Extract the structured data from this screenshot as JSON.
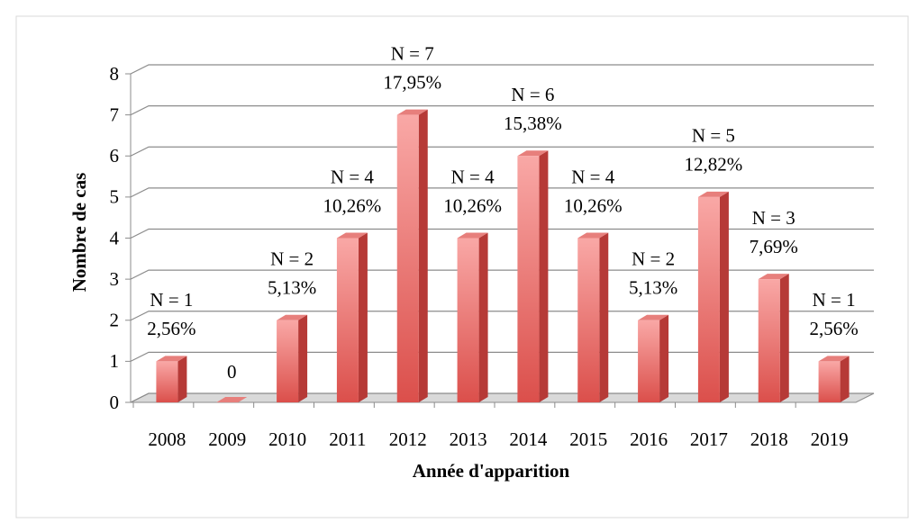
{
  "chart_data": {
    "type": "bar3d",
    "y_label": "Nombre de cas",
    "x_label": "Année d'apparition",
    "categories": [
      "2008",
      "2009",
      "2010",
      "2011",
      "2012",
      "2013",
      "2014",
      "2015",
      "2016",
      "2017",
      "2018",
      "2019"
    ],
    "values": [
      1,
      0,
      2,
      4,
      7,
      4,
      6,
      4,
      2,
      5,
      3,
      1
    ],
    "value_labels": [
      "N = 1",
      "0",
      "N = 2",
      "N = 4",
      "N = 7",
      "N = 4",
      "N = 6",
      "N = 4",
      "N = 2",
      "N = 5",
      "N = 3",
      "N = 1"
    ],
    "percentages": [
      2.56,
      null,
      5.13,
      10.26,
      17.95,
      10.26,
      15.38,
      10.26,
      5.13,
      12.82,
      7.69,
      2.56
    ],
    "percentage_labels": [
      "2,56%",
      null,
      "5,13%",
      "10,26%",
      "17,95%",
      "10,26%",
      "15,38%",
      "10,26%",
      "5,13%",
      "12,82%",
      "7,69%",
      "2,56%"
    ],
    "color": "#e0504d",
    "ylim": [
      0,
      8
    ],
    "yticks": [
      0,
      1,
      2,
      3,
      4,
      5,
      6,
      7,
      8
    ],
    "grid": true
  }
}
